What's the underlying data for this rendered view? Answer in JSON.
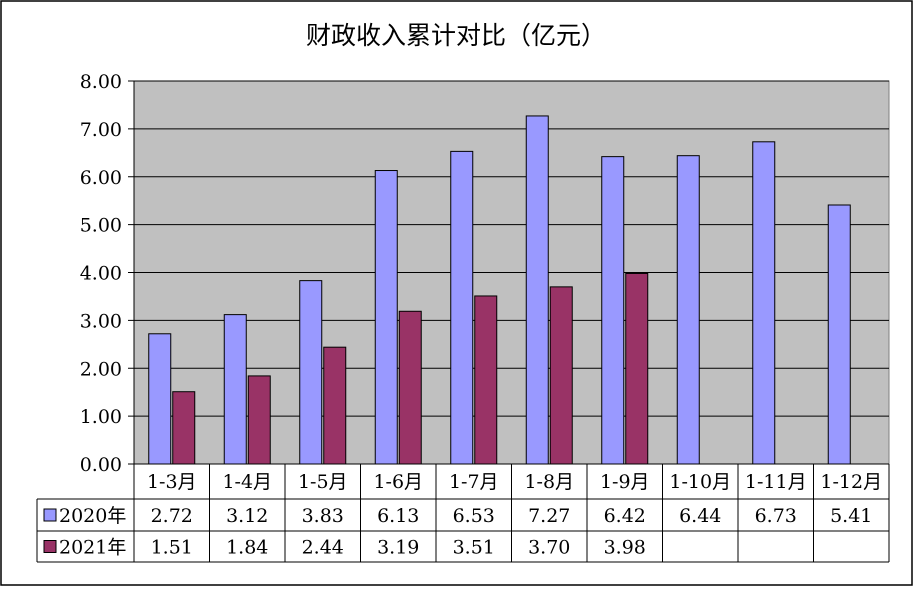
{
  "chart_data": {
    "type": "bar",
    "title": "财政收入累计对比（亿元）",
    "categories": [
      "1-3月",
      "1-4月",
      "1-5月",
      "1-6月",
      "1-7月",
      "1-8月",
      "1-9月",
      "1-10月",
      "1-11月",
      "1-12月"
    ],
    "series": [
      {
        "name": "2020年",
        "values": [
          2.72,
          3.12,
          3.83,
          6.13,
          6.53,
          7.27,
          6.42,
          6.44,
          6.73,
          5.41
        ],
        "color": "#9999FF"
      },
      {
        "name": "2021年",
        "values": [
          1.51,
          1.84,
          2.44,
          3.19,
          3.51,
          3.7,
          3.98,
          null,
          null,
          null
        ],
        "color": "#993366"
      }
    ],
    "value_labels": {
      "2020年": [
        "2.72",
        "3.12",
        "3.83",
        "6.13",
        "6.53",
        "7.27",
        "6.42",
        "6.44",
        "6.73",
        "5.41"
      ],
      "2021年": [
        "1.51",
        "1.84",
        "2.44",
        "3.19",
        "3.51",
        "3.70",
        "3.98",
        "",
        "",
        ""
      ]
    },
    "ylim": [
      0,
      8
    ],
    "y_ticks": [
      "0.00",
      "1.00",
      "2.00",
      "3.00",
      "4.00",
      "5.00",
      "6.00",
      "7.00",
      "8.00"
    ],
    "grid": true,
    "plot_background": "#C0C0C0",
    "legend": "data-table-left"
  }
}
